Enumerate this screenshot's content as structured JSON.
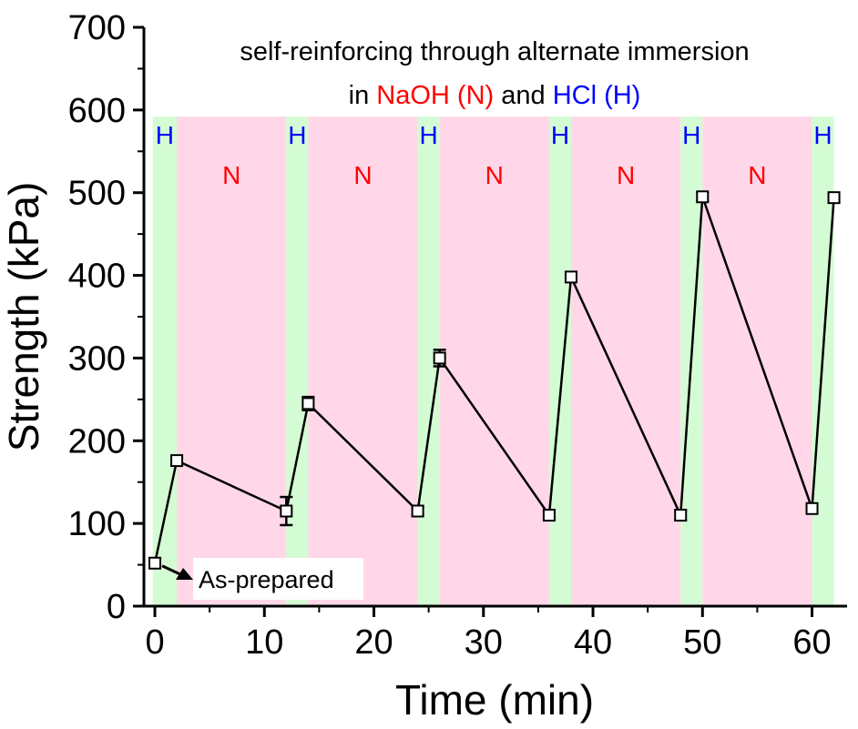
{
  "chart_data": {
    "type": "line",
    "title_line1": "self-reinforcing through alternate immersion",
    "title_line2_parts": [
      "in ",
      "NaOH (N)",
      " and ",
      "HCl (H)"
    ],
    "xlabel": "Time (min)",
    "ylabel": "Strength (kPa)",
    "xlim": [
      -1,
      63.2
    ],
    "ylim": [
      0,
      700
    ],
    "xticks": [
      0,
      10,
      20,
      30,
      40,
      50,
      60
    ],
    "yticks": [
      0,
      100,
      200,
      300,
      400,
      500,
      600,
      700
    ],
    "x": [
      0,
      2,
      12,
      14,
      24,
      26,
      36,
      38,
      48,
      50,
      60,
      62
    ],
    "y": [
      52,
      176,
      115,
      245,
      115,
      300,
      110,
      398,
      110,
      495,
      118,
      494
    ],
    "yerr": [
      6,
      5,
      17,
      8,
      5,
      10,
      5,
      6,
      6,
      5,
      5,
      6
    ],
    "bands": [
      {
        "label": "H",
        "from": -0.2,
        "to": 2,
        "color": "#d4fcd4",
        "label_color": "#0000ff"
      },
      {
        "label": "N",
        "from": 2,
        "to": 12,
        "color": "#ffd7e8",
        "label_color": "#ff0000"
      },
      {
        "label": "H",
        "from": 12,
        "to": 14,
        "color": "#d4fcd4",
        "label_color": "#0000ff"
      },
      {
        "label": "N",
        "from": 14,
        "to": 24,
        "color": "#ffd7e8",
        "label_color": "#ff0000"
      },
      {
        "label": "H",
        "from": 24,
        "to": 26,
        "color": "#d4fcd4",
        "label_color": "#0000ff"
      },
      {
        "label": "N",
        "from": 26,
        "to": 36,
        "color": "#ffd7e8",
        "label_color": "#ff0000"
      },
      {
        "label": "H",
        "from": 36,
        "to": 38,
        "color": "#d4fcd4",
        "label_color": "#0000ff"
      },
      {
        "label": "N",
        "from": 38,
        "to": 48,
        "color": "#ffd7e8",
        "label_color": "#ff0000"
      },
      {
        "label": "H",
        "from": 48,
        "to": 50,
        "color": "#d4fcd4",
        "label_color": "#0000ff"
      },
      {
        "label": "N",
        "from": 50,
        "to": 60,
        "color": "#ffd7e8",
        "label_color": "#ff0000"
      },
      {
        "label": "H",
        "from": 60,
        "to": 62,
        "color": "#d4fcd4",
        "label_color": "#0000ff"
      }
    ],
    "band_top": 592,
    "annotation": "As-prepared"
  }
}
